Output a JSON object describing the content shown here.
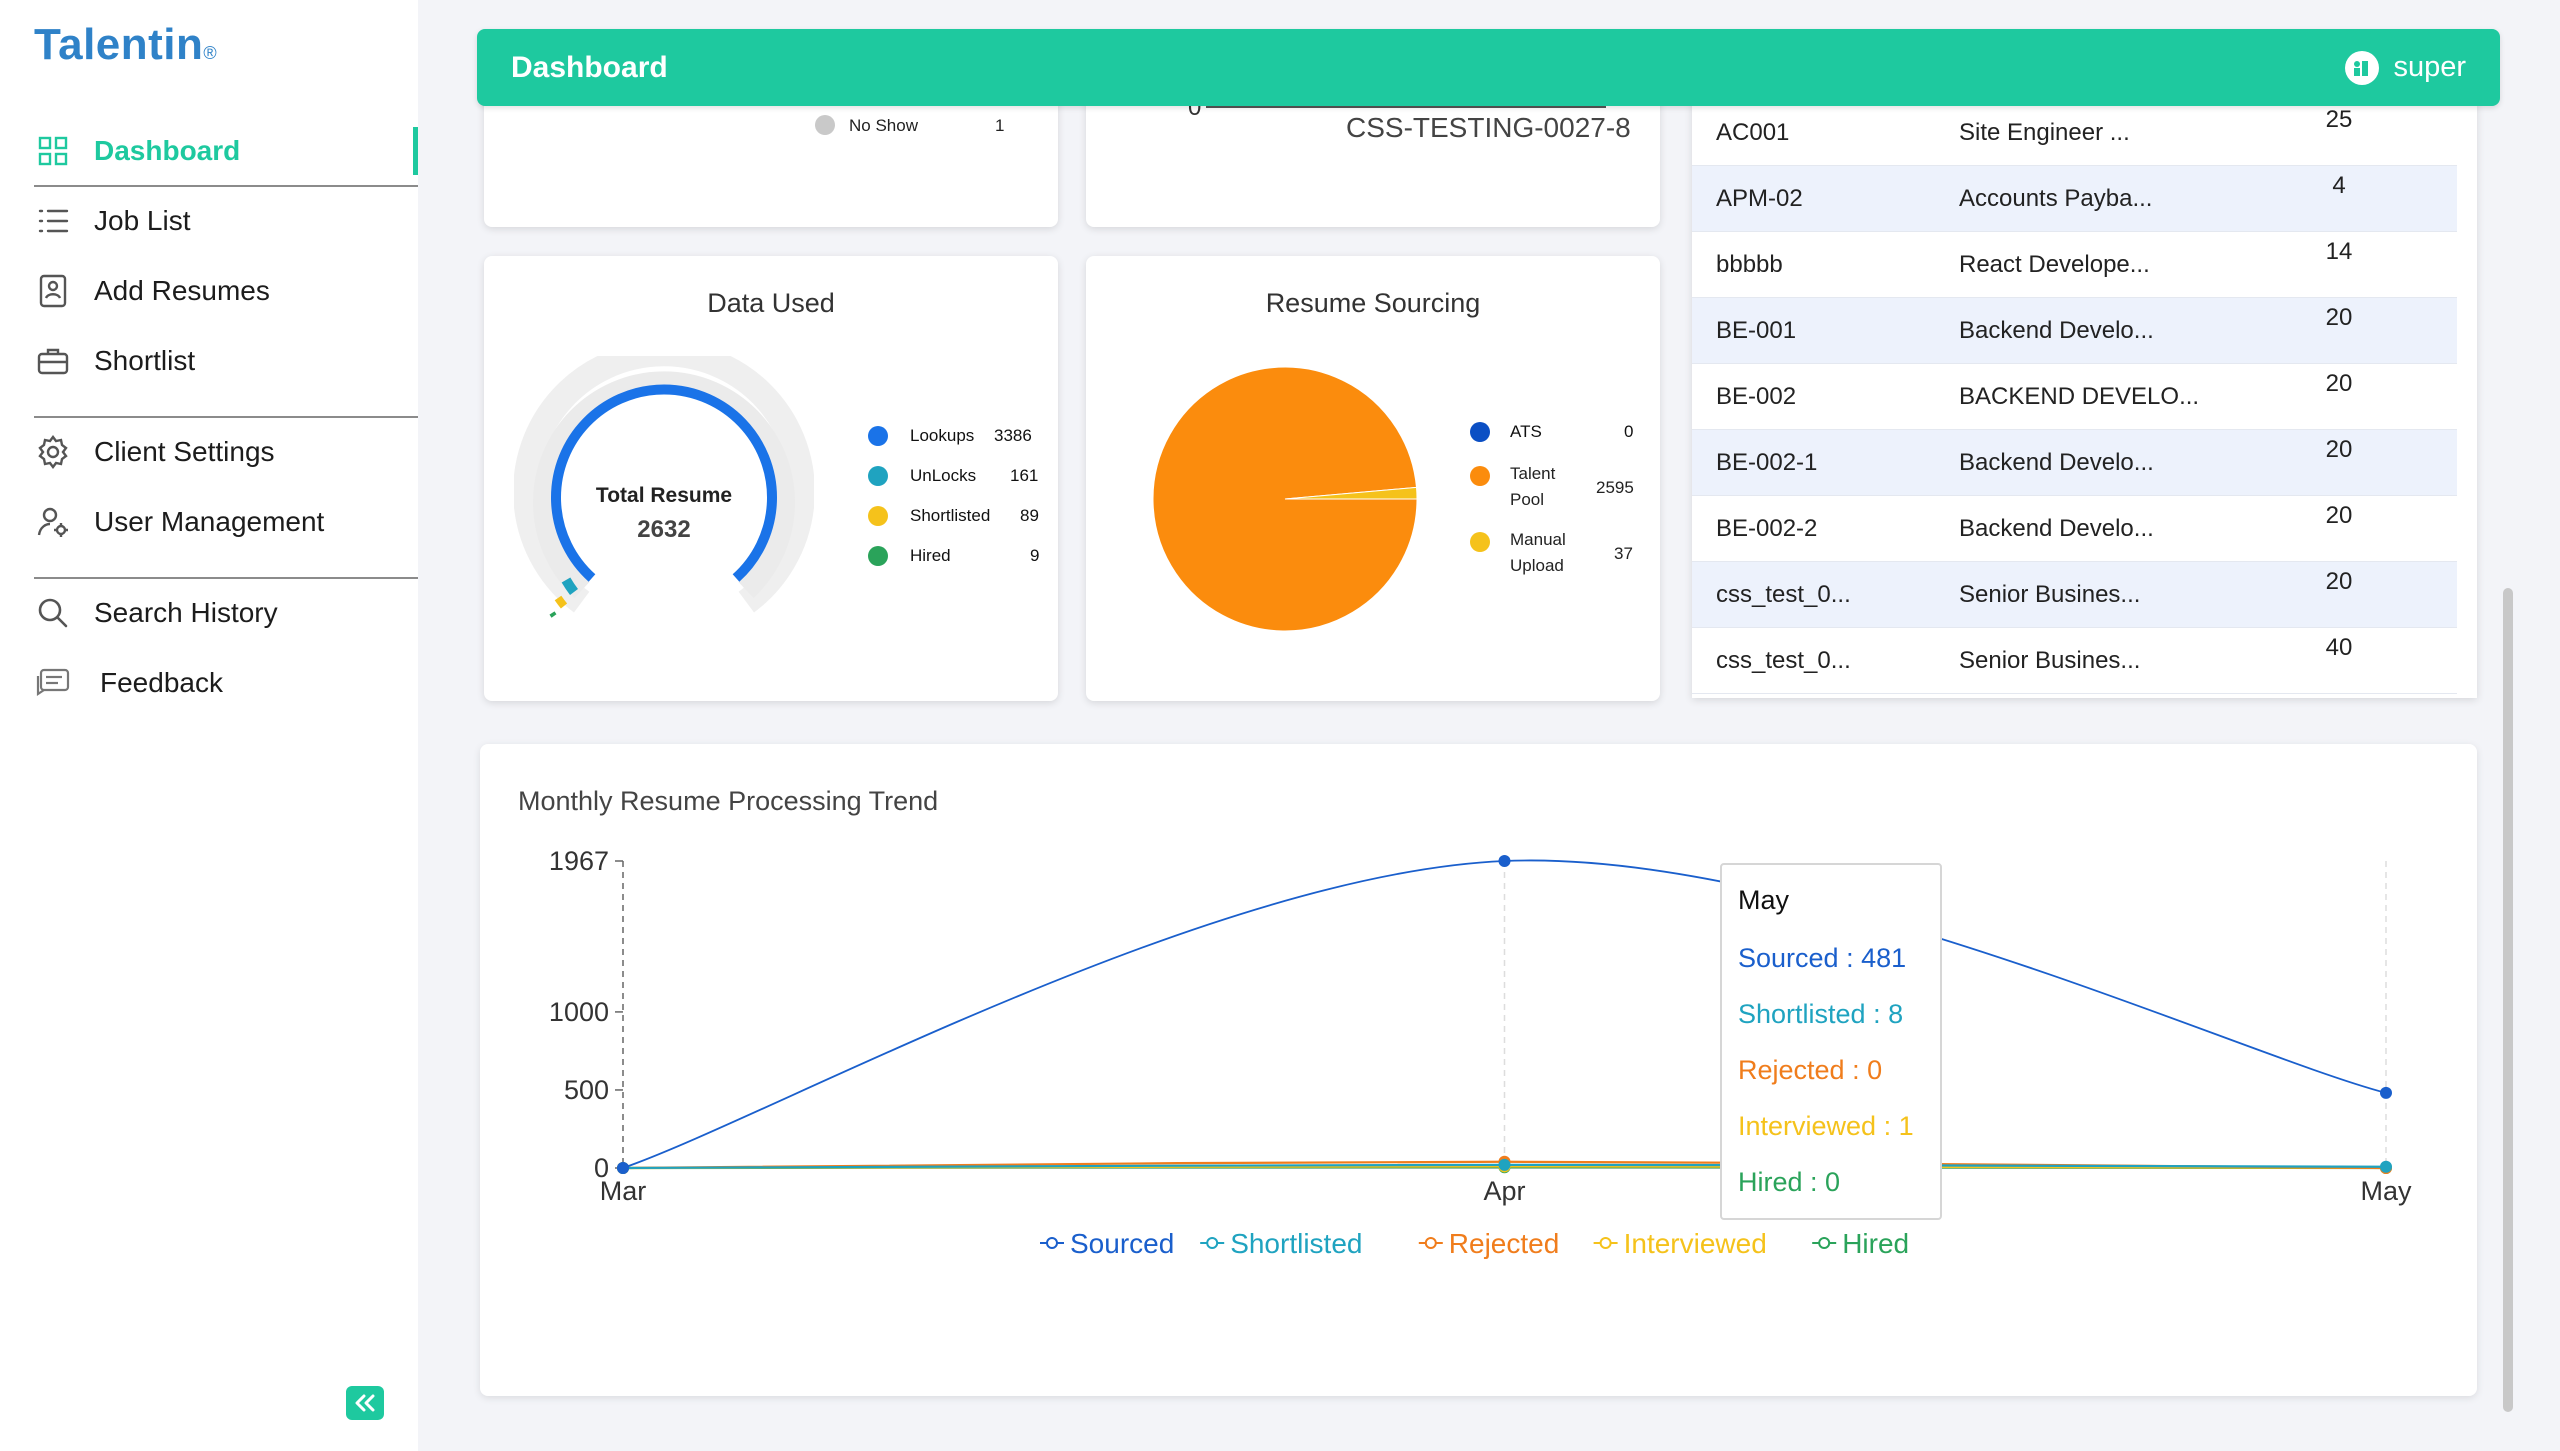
{
  "app": {
    "logo": "Talentin",
    "logo_mark": "®"
  },
  "sidebar": {
    "items": [
      {
        "label": "Dashboard",
        "icon": "grid-icon"
      },
      {
        "label": "Job List",
        "icon": "list-icon"
      },
      {
        "label": "Add Resumes",
        "icon": "resume-icon"
      },
      {
        "label": "Shortlist",
        "icon": "briefcase-icon"
      },
      {
        "label": "Client Settings",
        "icon": "gear-icon"
      },
      {
        "label": "User Management",
        "icon": "users-icon"
      },
      {
        "label": "Search History",
        "icon": "search-icon"
      },
      {
        "label": "Feedback",
        "icon": "feedback-icon"
      }
    ]
  },
  "header": {
    "title": "Dashboard",
    "user": "super"
  },
  "top_left_card": {
    "legend_label": "No Show",
    "legend_value": "1"
  },
  "top_mid_card": {
    "axis_tick": "0",
    "job_label": "CSS-TESTING-0027-8"
  },
  "data_used": {
    "title": "Data Used",
    "center_label": "Total Resume",
    "center_value": "2632",
    "legend": [
      {
        "label": "Lookups",
        "value": "3386",
        "color": "#1a73e8"
      },
      {
        "label": "UnLocks",
        "value": "161",
        "color": "#1fa3c0"
      },
      {
        "label": "Shortlisted",
        "value": "89",
        "color": "#f5c21b"
      },
      {
        "label": "Hired",
        "value": "9",
        "color": "#2aa35a"
      }
    ]
  },
  "resume_sourcing": {
    "title": "Resume Sourcing",
    "legend": [
      {
        "label": "ATS",
        "value": "0",
        "color": "#0b4fc4"
      },
      {
        "label": "Talent Pool",
        "label_l1": "Talent",
        "label_l2": "Pool",
        "value": "2595",
        "color": "#fb8c0d"
      },
      {
        "label": "Manual Upload",
        "label_l1": "Manual",
        "label_l2": "Upload",
        "value": "37",
        "color": "#f5c21b"
      }
    ]
  },
  "jobs_table": {
    "rows": [
      {
        "code": "AC001",
        "title": "Site Engineer ...",
        "count": "25"
      },
      {
        "code": "APM-02",
        "title": "Accounts Payba...",
        "count": "4"
      },
      {
        "code": "bbbbb",
        "title": "React Develope...",
        "count": "14"
      },
      {
        "code": "BE-001",
        "title": "Backend Develo...",
        "count": "20"
      },
      {
        "code": "BE-002",
        "title": "BACKEND DEVELO...",
        "count": "20"
      },
      {
        "code": "BE-002-1",
        "title": "Backend Develo...",
        "count": "20"
      },
      {
        "code": "BE-002-2",
        "title": "Backend Develo...",
        "count": "20"
      },
      {
        "code": "css_test_0...",
        "title": "Senior Busines...",
        "count": "20"
      },
      {
        "code": "css_test_0...",
        "title": "Senior Busines...",
        "count": "40"
      }
    ]
  },
  "chart_data": {
    "type": "line",
    "title": "Monthly Resume Processing Trend",
    "x": [
      "Mar",
      "Apr",
      "May"
    ],
    "yticks": [
      "0",
      "500",
      "1000",
      "1967"
    ],
    "ylim": [
      0,
      1967
    ],
    "series": [
      {
        "name": "Sourced",
        "values": [
          0,
          1967,
          481
        ],
        "color": "#1a5fcc"
      },
      {
        "name": "Shortlisted",
        "values": [
          0,
          20,
          8
        ],
        "color": "#1fa3c0"
      },
      {
        "name": "Rejected",
        "values": [
          0,
          40,
          0
        ],
        "color": "#f07d1c"
      },
      {
        "name": "Interviewed",
        "values": [
          0,
          10,
          1
        ],
        "color": "#f5c21b"
      },
      {
        "name": "Hired",
        "values": [
          0,
          5,
          0
        ],
        "color": "#2aa35a"
      }
    ],
    "legend_position": "bottom",
    "tooltip": {
      "title": "May",
      "rows": [
        {
          "text": "Sourced : 481",
          "color": "#1a5fcc"
        },
        {
          "text": "Shortlisted : 8",
          "color": "#1fa3c0"
        },
        {
          "text": "Rejected : 0",
          "color": "#f07d1c"
        },
        {
          "text": "Interviewed : 1",
          "color": "#f5c21b"
        },
        {
          "text": "Hired : 0",
          "color": "#2aa35a"
        }
      ]
    }
  }
}
